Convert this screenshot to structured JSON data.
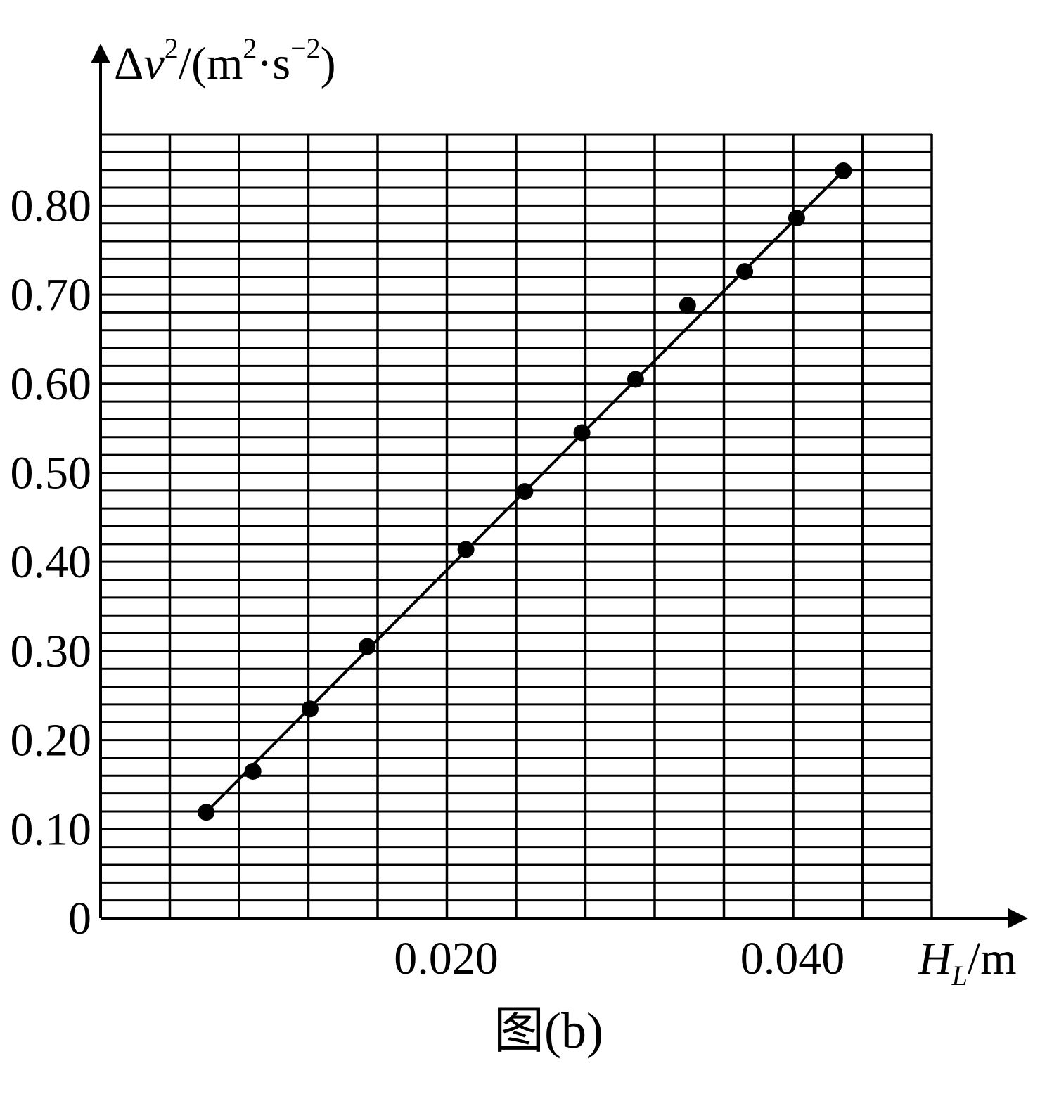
{
  "chart_data": {
    "type": "scatter",
    "caption": "图(b)",
    "xlabel": {
      "var": "H",
      "sub": "L",
      "unit": "/m"
    },
    "ylabel": {
      "var": "Δ",
      "var2": "v",
      "sup": "2",
      "unit_open": "/(m",
      "unit_sup1": "2",
      "unit_mid": "·s",
      "unit_sup2": "−2",
      "unit_close": ")"
    },
    "x_range": [
      0,
      0.048
    ],
    "y_range": [
      0,
      0.88
    ],
    "x_ticks": [
      {
        "value": 0.02,
        "label": "0.020"
      },
      {
        "value": 0.04,
        "label": "0.040"
      }
    ],
    "y_ticks": [
      {
        "value": 0,
        "label": "0"
      },
      {
        "value": 0.1,
        "label": "0.10"
      },
      {
        "value": 0.2,
        "label": "0.20"
      },
      {
        "value": 0.3,
        "label": "0.30"
      },
      {
        "value": 0.4,
        "label": "0.40"
      },
      {
        "value": 0.5,
        "label": "0.50"
      },
      {
        "value": 0.6,
        "label": "0.60"
      },
      {
        "value": 0.7,
        "label": "0.70"
      },
      {
        "value": 0.8,
        "label": "0.80"
      }
    ],
    "grid": {
      "x_step": 0.004,
      "y_step": 0.02
    },
    "points": [
      {
        "x": 0.0061,
        "y": 0.119
      },
      {
        "x": 0.0088,
        "y": 0.165
      },
      {
        "x": 0.0121,
        "y": 0.235
      },
      {
        "x": 0.0154,
        "y": 0.305
      },
      {
        "x": 0.0211,
        "y": 0.414
      },
      {
        "x": 0.0245,
        "y": 0.479
      },
      {
        "x": 0.0278,
        "y": 0.545
      },
      {
        "x": 0.0309,
        "y": 0.605
      },
      {
        "x": 0.0339,
        "y": 0.688
      },
      {
        "x": 0.0372,
        "y": 0.726
      },
      {
        "x": 0.0402,
        "y": 0.786
      },
      {
        "x": 0.0429,
        "y": 0.839
      }
    ],
    "fit_line": {
      "x_start": 0.0061,
      "y_start": 0.119,
      "x_end": 0.0429,
      "y_end": 0.839
    }
  }
}
